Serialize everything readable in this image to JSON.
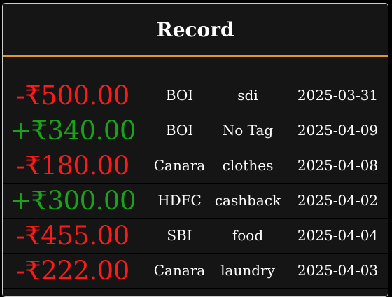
{
  "title": "Record",
  "colors": {
    "negative": "#ff1a1a",
    "positive": "#1aa31a",
    "accent": "#e0962a",
    "background": "#151515"
  },
  "records": [
    {
      "amount": "-₹500.00",
      "sign": "negative",
      "bank": "BOI",
      "tag": "sdi",
      "date": "2025-03-31"
    },
    {
      "amount": "+₹340.00",
      "sign": "positive",
      "bank": "BOI",
      "tag": "No Tag",
      "date": "2025-04-09"
    },
    {
      "amount": "-₹180.00",
      "sign": "negative",
      "bank": "Canara",
      "tag": "clothes",
      "date": "2025-04-08"
    },
    {
      "amount": "+₹300.00",
      "sign": "positive",
      "bank": "HDFC",
      "tag": "cashback",
      "date": "2025-04-02"
    },
    {
      "amount": "-₹455.00",
      "sign": "negative",
      "bank": "SBI",
      "tag": "food",
      "date": "2025-04-04"
    },
    {
      "amount": "-₹222.00",
      "sign": "negative",
      "bank": "Canara",
      "tag": "laundry",
      "date": "2025-04-03"
    }
  ]
}
